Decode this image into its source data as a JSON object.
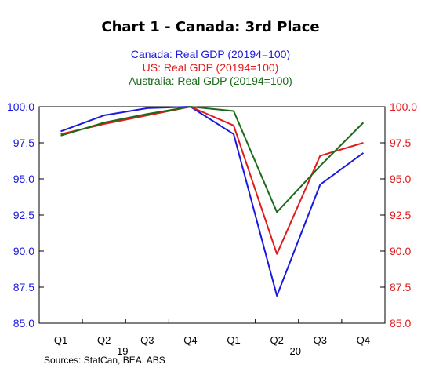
{
  "chart_data": {
    "type": "line",
    "title": "Chart 1 - Canada: 3rd Place",
    "categories": [
      "Q1",
      "Q2",
      "Q3",
      "Q4",
      "Q1",
      "Q2",
      "Q3",
      "Q4"
    ],
    "year_labels": [
      "19",
      "20"
    ],
    "series": [
      {
        "name": "Canada: Real GDP (20194=100)",
        "color": "#1a1adf",
        "values": [
          98.3,
          99.4,
          99.9,
          100.0,
          98.1,
          86.9,
          94.6,
          96.8
        ]
      },
      {
        "name": "US: Real GDP (20194=100)",
        "color": "#e01b1b",
        "values": [
          98.1,
          98.8,
          99.4,
          100.0,
          98.7,
          89.8,
          96.6,
          97.5
        ]
      },
      {
        "name": "Australia: Real GDP (20194=100)",
        "color": "#1a6a1a",
        "values": [
          98.0,
          98.9,
          99.5,
          100.0,
          99.7,
          92.7,
          95.9,
          98.9
        ]
      }
    ],
    "y_ticks": [
      "85.0",
      "87.5",
      "90.0",
      "92.5",
      "95.0",
      "97.5",
      "100.0"
    ],
    "ylim": [
      85,
      100
    ],
    "left_axis_color": "#1a1adf",
    "right_axis_color": "#e01b1b",
    "grid": false,
    "legend_placement": "top-center",
    "source": "Sources:  StatCan, BEA, ABS"
  }
}
